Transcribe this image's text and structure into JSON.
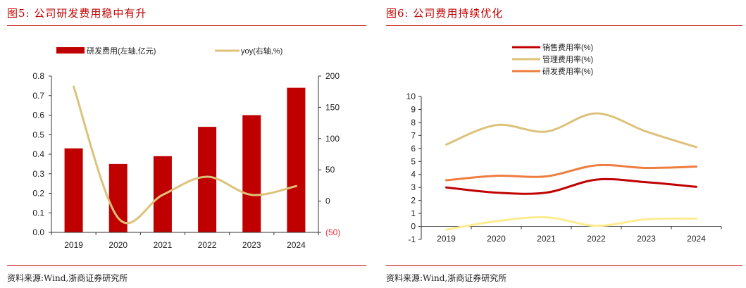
{
  "left": {
    "title": "图5:   公司研发费用稳中有升",
    "source": "资料来源:Wind,浙商证券研究所"
  },
  "right": {
    "title": "图6:   公司费用持续优化",
    "source": "资料来源:Wind,浙商证券研究所"
  },
  "colors": {
    "title_red": "#c00000",
    "bar": "#c00000",
    "yoy": "#dcc27a",
    "sales": "#c00000",
    "admin": "#dcc27a",
    "rnd": "#ee7d3f",
    "other": "#fdec90",
    "neg_label": "#e8323c"
  },
  "chart_data": [
    {
      "type": "bar",
      "title": "公司研发费用稳中有升",
      "categories": [
        "2019",
        "2020",
        "2021",
        "2022",
        "2023",
        "2024"
      ],
      "series": [
        {
          "name": "研发费用(左轴,亿元)",
          "axis": "left",
          "kind": "bar",
          "values": [
            0.43,
            0.35,
            0.39,
            0.54,
            0.6,
            0.74
          ]
        },
        {
          "name": "yoy(右轴,%)",
          "axis": "right",
          "kind": "line",
          "values": [
            183,
            -27,
            10,
            39,
            10,
            24
          ]
        }
      ],
      "ylim_left": [
        0,
        0.8
      ],
      "yticks_left": [
        "0.0",
        "0.1",
        "0.2",
        "0.3",
        "0.4",
        "0.5",
        "0.6",
        "0.7",
        "0.8"
      ],
      "ylim_right": [
        -50,
        200
      ],
      "yticks_right": [
        "(50)",
        "0",
        "50",
        "100",
        "150",
        "200"
      ],
      "legend": [
        "研发费用(左轴,亿元)",
        "yoy(右轴,%)"
      ],
      "legend_position": "top-center",
      "grid": false
    },
    {
      "type": "line",
      "title": "公司费用持续优化",
      "categories": [
        "2019",
        "2020",
        "2021",
        "2022",
        "2023",
        "2024"
      ],
      "series": [
        {
          "name": "销售费用率(%)",
          "values": [
            3.0,
            2.6,
            2.6,
            3.6,
            3.4,
            3.05
          ]
        },
        {
          "name": "管理费用率(%)",
          "values": [
            6.3,
            7.8,
            7.3,
            8.7,
            7.3,
            6.1
          ]
        },
        {
          "name": "研发费用率(%)",
          "values": [
            3.55,
            3.9,
            3.85,
            4.7,
            4.5,
            4.6
          ]
        },
        {
          "name": "",
          "values": [
            -0.25,
            0.4,
            0.7,
            0.05,
            0.55,
            0.6
          ]
        }
      ],
      "ylim": [
        -1,
        10
      ],
      "yticks": [
        "-1",
        "0",
        "1",
        "2",
        "3",
        "4",
        "5",
        "6",
        "7",
        "8",
        "9",
        "10"
      ],
      "legend": [
        "销售费用率(%)",
        "管理费用率(%)",
        "研发费用率(%)"
      ],
      "legend_position": "top-center",
      "grid": false
    }
  ]
}
